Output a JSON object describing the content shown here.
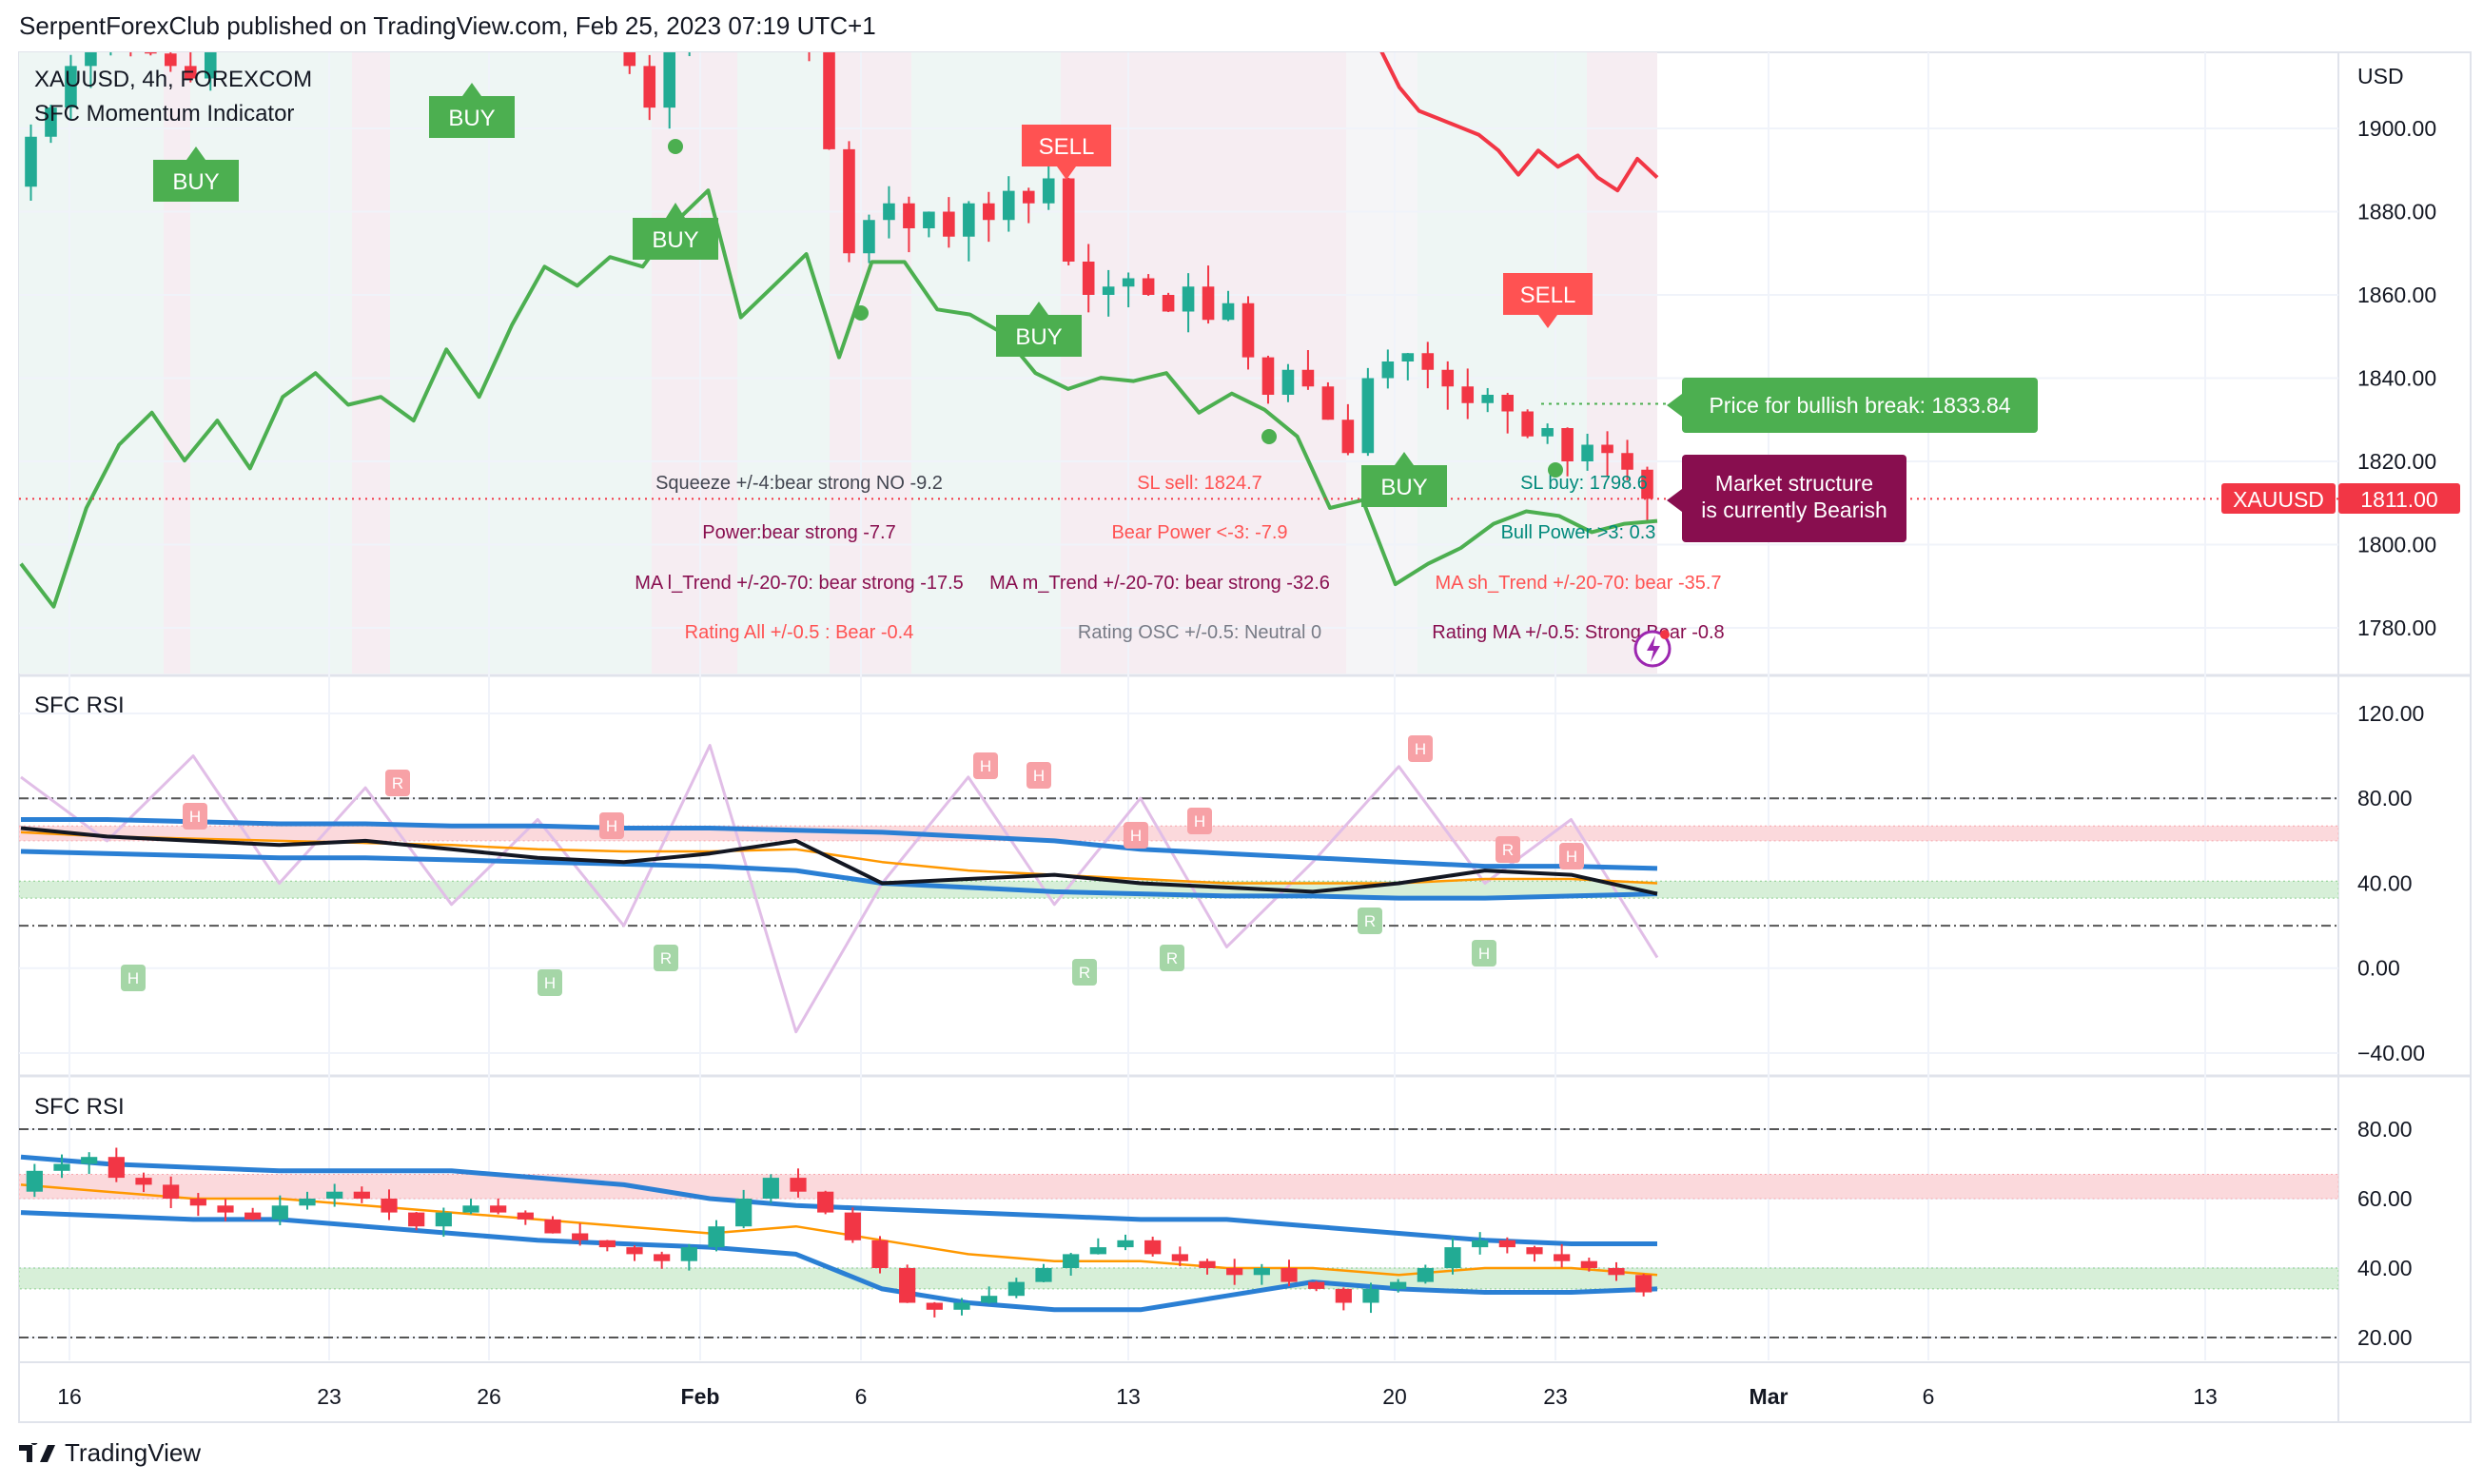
{
  "header": {
    "title": "SerpentForexClub published on TradingView.com, Feb 25, 2023 07:19 UTC+1"
  },
  "legend": {
    "symbol": "XAUUSD, 4h, FOREXCOM",
    "indicator": "SFC Momentum Indicator",
    "rsi1": "SFC RSI",
    "rsi2": "SFC RSI"
  },
  "price_axis": {
    "currency": "USD",
    "ticks": [
      "1900.00",
      "1880.00",
      "1860.00",
      "1840.00",
      "1820.00",
      "1800.00",
      "1780.00"
    ],
    "symbol_tag": "XAUUSD",
    "last_price": "1811.00"
  },
  "rsi1_axis": {
    "ticks": [
      "120.00",
      "80.00",
      "40.00",
      "0.00",
      "−40.00"
    ]
  },
  "rsi2_axis": {
    "ticks": [
      "80.00",
      "60.00",
      "40.00",
      "20.00"
    ]
  },
  "date_axis": {
    "ticks": [
      "16",
      "23",
      "26",
      "Feb",
      "6",
      "13",
      "20",
      "23",
      "Mar",
      "6",
      "13"
    ]
  },
  "signals": {
    "buy": "BUY",
    "sell": "SELL",
    "h": "H",
    "r": "R"
  },
  "annotations": {
    "squeeze": "Squeeze +/-4:bear strong NO -9.2",
    "sl_sell": "SL sell: 1824.7",
    "sl_buy": "SL buy: 1798.6",
    "power": "Power:bear strong -7.7",
    "bear_power": "Bear Power <-3: -7.9",
    "bull_power": "Bull Power >3: 0.3",
    "ma_l": "MA l_Trend +/-20-70: bear strong -17.5",
    "ma_m": "MA m_Trend +/-20-70: bear strong -32.6",
    "ma_sh": "MA sh_Trend +/-20-70: bear -35.7",
    "rating_all": "Rating All +/-0.5 : Bear -0.4",
    "rating_osc": "Rating OSC +/-0.5: Neutral 0",
    "rating_ma": "Rating MA +/-0.5: Strong Bear -0.8"
  },
  "callouts": {
    "bullish_break": "Price for bullish break: 1833.84",
    "structure_line1": "Market structure",
    "structure_line2": "is currently Bearish"
  },
  "logo": {
    "text": "TradingView"
  },
  "colors": {
    "up": "#22ab94",
    "down": "#f23645",
    "buy": "#4caf50",
    "sell": "#ff5252",
    "maroon": "#880e4f",
    "teal": "#00897b",
    "rsi_blue": "#2a7fd4",
    "rsi_orange": "#ff9800"
  },
  "chart_data": [
    {
      "type": "candlestick",
      "title": "XAUUSD, 4h, FOREXCOM",
      "ylim": [
        1770,
        1925
      ],
      "x_range": [
        "Jan 15",
        "Feb 24"
      ],
      "closes": [
        1898,
        1905,
        1915,
        1920,
        1925,
        1922,
        1918,
        1915,
        1912,
        1920,
        1928,
        1930,
        1925,
        1928,
        1932,
        1935,
        1928,
        1925,
        1930,
        1935,
        1932,
        1938,
        1935,
        1930,
        1935,
        1940,
        1938,
        1932,
        1930,
        1928,
        1915,
        1905,
        1920,
        1930,
        1935,
        1932,
        1930,
        1928,
        1925,
        1920,
        1895,
        1870,
        1878,
        1882,
        1876,
        1880,
        1874,
        1882,
        1878,
        1885,
        1882,
        1888,
        1868,
        1860,
        1862,
        1864,
        1860,
        1856,
        1862,
        1854,
        1858,
        1845,
        1836,
        1842,
        1838,
        1830,
        1822,
        1840,
        1844,
        1846,
        1842,
        1838,
        1834,
        1836,
        1832,
        1826,
        1828,
        1820,
        1824,
        1822,
        1818,
        1811
      ],
      "momentum_line": [
        1795.4,
        1785.1,
        1808.8,
        1824.0,
        1831.7,
        1820.2,
        1829.8,
        1818.3,
        1835.5,
        1841.2,
        1833.6,
        1835.5,
        1829.8,
        1846.9,
        1835.5,
        1852.7,
        1866.8,
        1862.2,
        1869.1,
        1866.8,
        1877.5,
        1885.1,
        1854.6,
        1862.2,
        1869.8,
        1845.0,
        1867.9,
        1867.9,
        1856.5,
        1855.3,
        1850.8,
        1841.2,
        1837.4,
        1840.1,
        1839.3,
        1841.2,
        1831.7,
        1836.3,
        1832.4,
        1826.0,
        1808.8,
        1810.7,
        1790.5,
        1795.4,
        1799.2,
        1805.0,
        1808.0,
        1806.9,
        1803.0,
        1805.0,
        1805.7
      ],
      "resistance_line": [
        1919.5,
        1909.9,
        1904.2,
        1902.3,
        1900.4,
        1898.5,
        1894.7,
        1888.9,
        1894.7,
        1890.8,
        1893.5,
        1888.2,
        1885.1,
        1892.7,
        1888.2
      ],
      "bullish_break": 1833.84,
      "last": 1811.0
    },
    {
      "type": "line",
      "title": "SFC RSI",
      "ylim": [
        -45,
        125
      ],
      "upper_band": [
        70,
        70,
        69,
        68,
        68,
        67,
        67,
        66,
        66,
        65,
        64,
        62,
        60,
        56,
        54,
        52,
        50,
        48,
        48,
        47
      ],
      "lower_band": [
        55,
        54,
        53,
        52,
        52,
        51,
        50,
        49,
        48,
        46,
        40,
        38,
        36,
        35,
        34,
        34,
        33,
        33,
        34,
        35
      ],
      "orange_ma": [
        64,
        62,
        61,
        60,
        59,
        58,
        56,
        55,
        55,
        56,
        50,
        46,
        44,
        42,
        40,
        40,
        40,
        42,
        42,
        40
      ],
      "rsi": [
        66,
        62,
        60,
        58,
        60,
        56,
        52,
        50,
        54,
        60,
        40,
        42,
        44,
        40,
        38,
        36,
        40,
        46,
        44,
        35
      ],
      "oscillator": [
        90,
        60,
        100,
        40,
        85,
        30,
        70,
        20,
        105,
        -30,
        40,
        90,
        30,
        80,
        10,
        50,
        95,
        40,
        70,
        5
      ],
      "levels": [
        80,
        20
      ],
      "zones": [
        [
          60,
          67
        ],
        [
          33,
          41
        ]
      ]
    },
    {
      "type": "candlestick",
      "title": "SFC RSI",
      "ylim": [
        15,
        85
      ],
      "closes": [
        68,
        70,
        72,
        66,
        64,
        60,
        58,
        56,
        54,
        58,
        60,
        62,
        60,
        56,
        52,
        56,
        58,
        56,
        54,
        50,
        48,
        46,
        44,
        42,
        46,
        52,
        60,
        66,
        62,
        56,
        48,
        40,
        30,
        28,
        30,
        32,
        36,
        40,
        44,
        46,
        48,
        44,
        42,
        40,
        38,
        40,
        36,
        34,
        30,
        34,
        36,
        40,
        46,
        48,
        46,
        44,
        42,
        40,
        38,
        33
      ],
      "upper_band": [
        72,
        70,
        69,
        68,
        68,
        68,
        66,
        64,
        60,
        58,
        57,
        56,
        55,
        54,
        54,
        52,
        50,
        48,
        47,
        47
      ],
      "lower_band": [
        56,
        55,
        54,
        54,
        52,
        50,
        48,
        47,
        46,
        44,
        34,
        30,
        28,
        28,
        32,
        36,
        34,
        33,
        33,
        34
      ],
      "orange_ma": [
        64,
        62,
        60,
        60,
        58,
        56,
        54,
        52,
        50,
        52,
        48,
        44,
        42,
        42,
        40,
        40,
        38,
        40,
        40,
        38
      ],
      "levels": [
        80,
        20
      ],
      "zones": [
        [
          60,
          67
        ],
        [
          34,
          40
        ]
      ]
    }
  ]
}
